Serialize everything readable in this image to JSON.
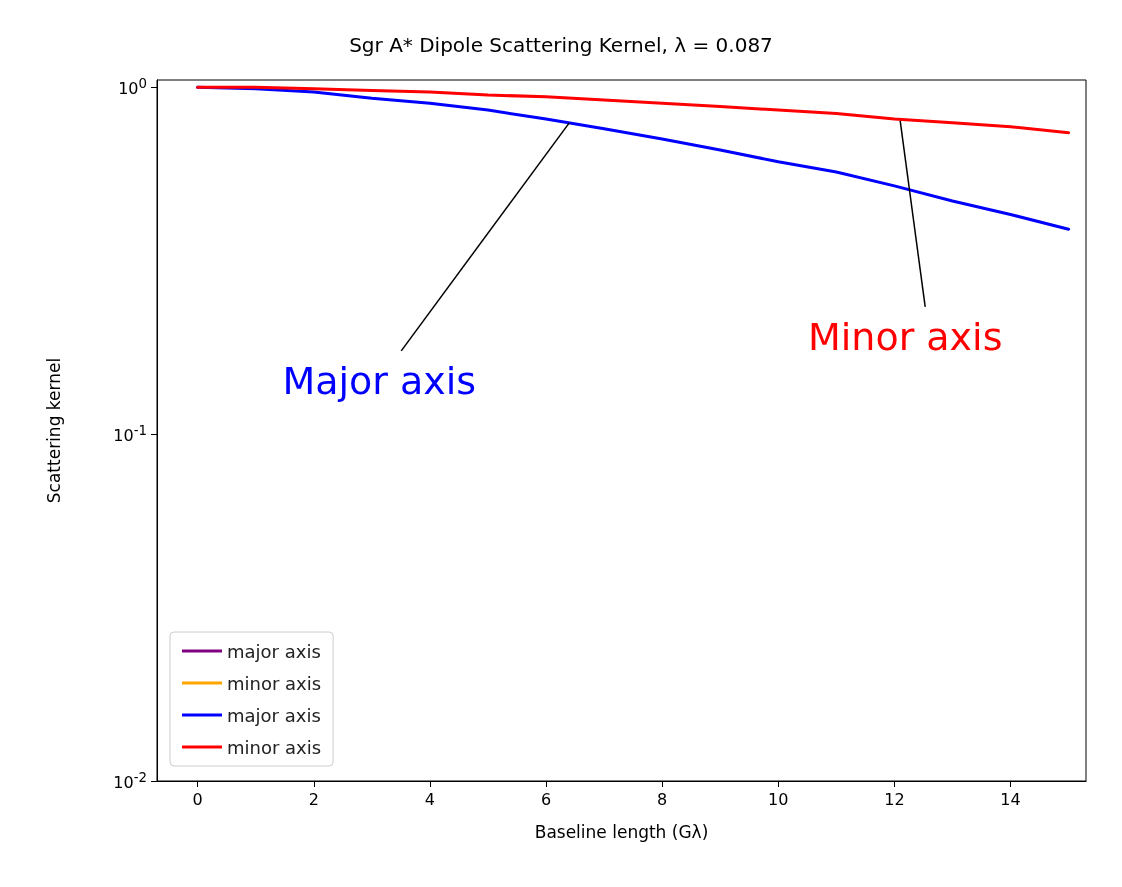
{
  "chart_data": {
    "type": "line",
    "title": "Sgr A* Dipole Scattering Kernel, λ = 0.087",
    "xlabel": "Baseline length (Gλ)",
    "ylabel": "Scattering kernel",
    "x": [
      0,
      1,
      2,
      3,
      4,
      5,
      6,
      7,
      8,
      9,
      10,
      11,
      12,
      13,
      14,
      15
    ],
    "series": [
      {
        "name": "major axis",
        "color": "#800080",
        "values": [
          null,
          null,
          null,
          null,
          null,
          null,
          null,
          null,
          null,
          null,
          null,
          null,
          null,
          null,
          null,
          null
        ]
      },
      {
        "name": "minor axis",
        "color": "#ffa500",
        "values": [
          null,
          null,
          null,
          null,
          null,
          null,
          null,
          null,
          null,
          null,
          null,
          null,
          null,
          null,
          null,
          null
        ]
      },
      {
        "name": "major axis",
        "color": "#0000ff",
        "values": [
          1.0,
          0.99,
          0.97,
          0.93,
          0.9,
          0.86,
          0.81,
          0.76,
          0.71,
          0.66,
          0.61,
          0.57,
          0.52,
          0.47,
          0.43,
          0.39
        ]
      },
      {
        "name": "minor axis",
        "color": "#ff0000",
        "values": [
          1.0,
          1.0,
          0.99,
          0.98,
          0.97,
          0.95,
          0.94,
          0.92,
          0.9,
          0.88,
          0.86,
          0.84,
          0.81,
          0.79,
          0.77,
          0.74
        ]
      }
    ],
    "xlim": [
      -0.7,
      15.3
    ],
    "xticks": [
      0,
      2,
      4,
      6,
      8,
      10,
      12,
      14
    ],
    "ylim": [
      0.01,
      1.05
    ],
    "yticks": [
      {
        "value": 1,
        "label": "10$^{0}$"
      },
      {
        "value": 0.1,
        "label": "10$^{-1}$"
      },
      {
        "value": 0.01,
        "label": "10$^{-2}$"
      }
    ],
    "log": "y",
    "grid": false,
    "legend": "bottom left",
    "marker": "none",
    "line_style": "solid",
    "annotations": [
      {
        "text": "Major axis",
        "x": 6.4,
        "y": 0.79
      },
      {
        "text": "Minor axis",
        "x": 12.1,
        "y": 0.8
      }
    ]
  }
}
